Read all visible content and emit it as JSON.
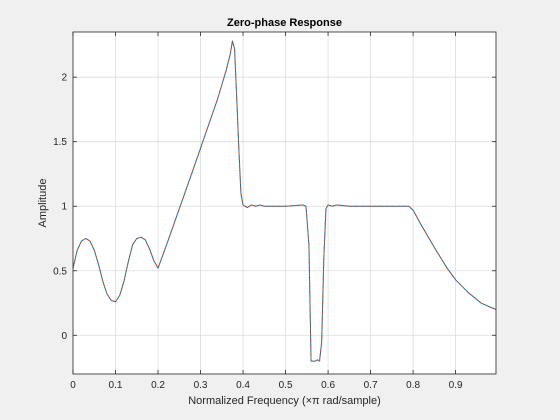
{
  "chart_data": {
    "type": "line",
    "title": "Zero-phase Response",
    "xlabel": "Normalized Frequency (×π rad/sample)",
    "ylabel": "Amplitude",
    "xlim": [
      0,
      0.995
    ],
    "ylim": [
      -0.3,
      2.35
    ],
    "xticks": [
      0,
      0.1,
      0.2,
      0.3,
      0.4,
      0.5,
      0.6,
      0.7,
      0.8,
      0.9
    ],
    "xtick_labels": [
      "0",
      "0.1",
      "0.2",
      "0.3",
      "0.4",
      "0.5",
      "0.6",
      "0.7",
      "0.8",
      "0.9"
    ],
    "yticks": [
      0,
      0.5,
      1,
      1.5,
      2
    ],
    "ytick_labels": [
      "0",
      "0.5",
      "1",
      "1.5",
      "2"
    ],
    "grid": true,
    "colors": {
      "background": "#f0f0f0",
      "plot_area": "#ffffff",
      "grid": "#dcdcdc",
      "axis": "#262626",
      "series_a": "#0072bd",
      "series_b": "#d95319"
    },
    "series": [
      {
        "color": "#0072bd",
        "style": "solid",
        "x": [
          0,
          0.01,
          0.02,
          0.03,
          0.04,
          0.05,
          0.06,
          0.07,
          0.08,
          0.09,
          0.1,
          0.11,
          0.12,
          0.13,
          0.14,
          0.15,
          0.16,
          0.17,
          0.18,
          0.19,
          0.2,
          0.22,
          0.25,
          0.28,
          0.3,
          0.32,
          0.34,
          0.36,
          0.37,
          0.375,
          0.38,
          0.385,
          0.39,
          0.395,
          0.4,
          0.41,
          0.42,
          0.43,
          0.44,
          0.45,
          0.5,
          0.54,
          0.548,
          0.555,
          0.56,
          0.565,
          0.57,
          0.575,
          0.58,
          0.585,
          0.59,
          0.595,
          0.6,
          0.61,
          0.62,
          0.65,
          0.7,
          0.75,
          0.78,
          0.79,
          0.8,
          0.82,
          0.85,
          0.88,
          0.9,
          0.93,
          0.96,
          0.98,
          0.995
        ],
        "y": [
          0.52,
          0.66,
          0.73,
          0.75,
          0.73,
          0.66,
          0.55,
          0.42,
          0.32,
          0.27,
          0.26,
          0.31,
          0.42,
          0.57,
          0.7,
          0.75,
          0.76,
          0.74,
          0.67,
          0.58,
          0.52,
          0.7,
          0.98,
          1.26,
          1.45,
          1.64,
          1.83,
          2.05,
          2.18,
          2.28,
          2.22,
          1.85,
          1.45,
          1.1,
          1.01,
          0.99,
          1.01,
          1.0,
          1.01,
          1.0,
          1.0,
          1.01,
          1.0,
          0.7,
          -0.2,
          -0.2,
          -0.2,
          -0.19,
          -0.2,
          -0.05,
          0.6,
          0.98,
          1.01,
          1.0,
          1.01,
          1.0,
          1.0,
          1.0,
          1.0,
          1.0,
          0.97,
          0.85,
          0.68,
          0.52,
          0.43,
          0.33,
          0.25,
          0.22,
          0.2
        ]
      },
      {
        "color": "#d95319",
        "style": "dashed",
        "x": [
          0,
          0.01,
          0.02,
          0.03,
          0.04,
          0.05,
          0.06,
          0.07,
          0.08,
          0.09,
          0.1,
          0.11,
          0.12,
          0.13,
          0.14,
          0.15,
          0.16,
          0.17,
          0.18,
          0.19,
          0.2,
          0.22,
          0.25,
          0.28,
          0.3,
          0.32,
          0.34,
          0.36,
          0.37,
          0.375,
          0.38,
          0.385,
          0.39,
          0.395,
          0.4,
          0.41,
          0.42,
          0.43,
          0.44,
          0.45,
          0.5,
          0.54,
          0.548,
          0.555,
          0.56,
          0.565,
          0.57,
          0.575,
          0.58,
          0.585,
          0.59,
          0.595,
          0.6,
          0.61,
          0.62,
          0.65,
          0.7,
          0.75,
          0.78,
          0.79,
          0.8,
          0.82,
          0.85,
          0.88,
          0.9,
          0.93,
          0.96,
          0.98,
          0.995
        ],
        "y": [
          0.52,
          0.66,
          0.73,
          0.75,
          0.73,
          0.66,
          0.55,
          0.42,
          0.32,
          0.27,
          0.26,
          0.31,
          0.42,
          0.57,
          0.7,
          0.75,
          0.76,
          0.74,
          0.67,
          0.58,
          0.52,
          0.7,
          0.98,
          1.26,
          1.45,
          1.64,
          1.83,
          2.05,
          2.18,
          2.28,
          2.22,
          1.85,
          1.45,
          1.1,
          1.01,
          0.99,
          1.01,
          1.0,
          1.01,
          1.0,
          1.0,
          1.01,
          1.0,
          0.7,
          -0.2,
          -0.2,
          -0.2,
          -0.19,
          -0.2,
          -0.05,
          0.6,
          0.98,
          1.01,
          1.0,
          1.01,
          1.0,
          1.0,
          1.0,
          1.0,
          1.0,
          0.97,
          0.85,
          0.68,
          0.52,
          0.43,
          0.33,
          0.25,
          0.22,
          0.2
        ]
      }
    ]
  }
}
